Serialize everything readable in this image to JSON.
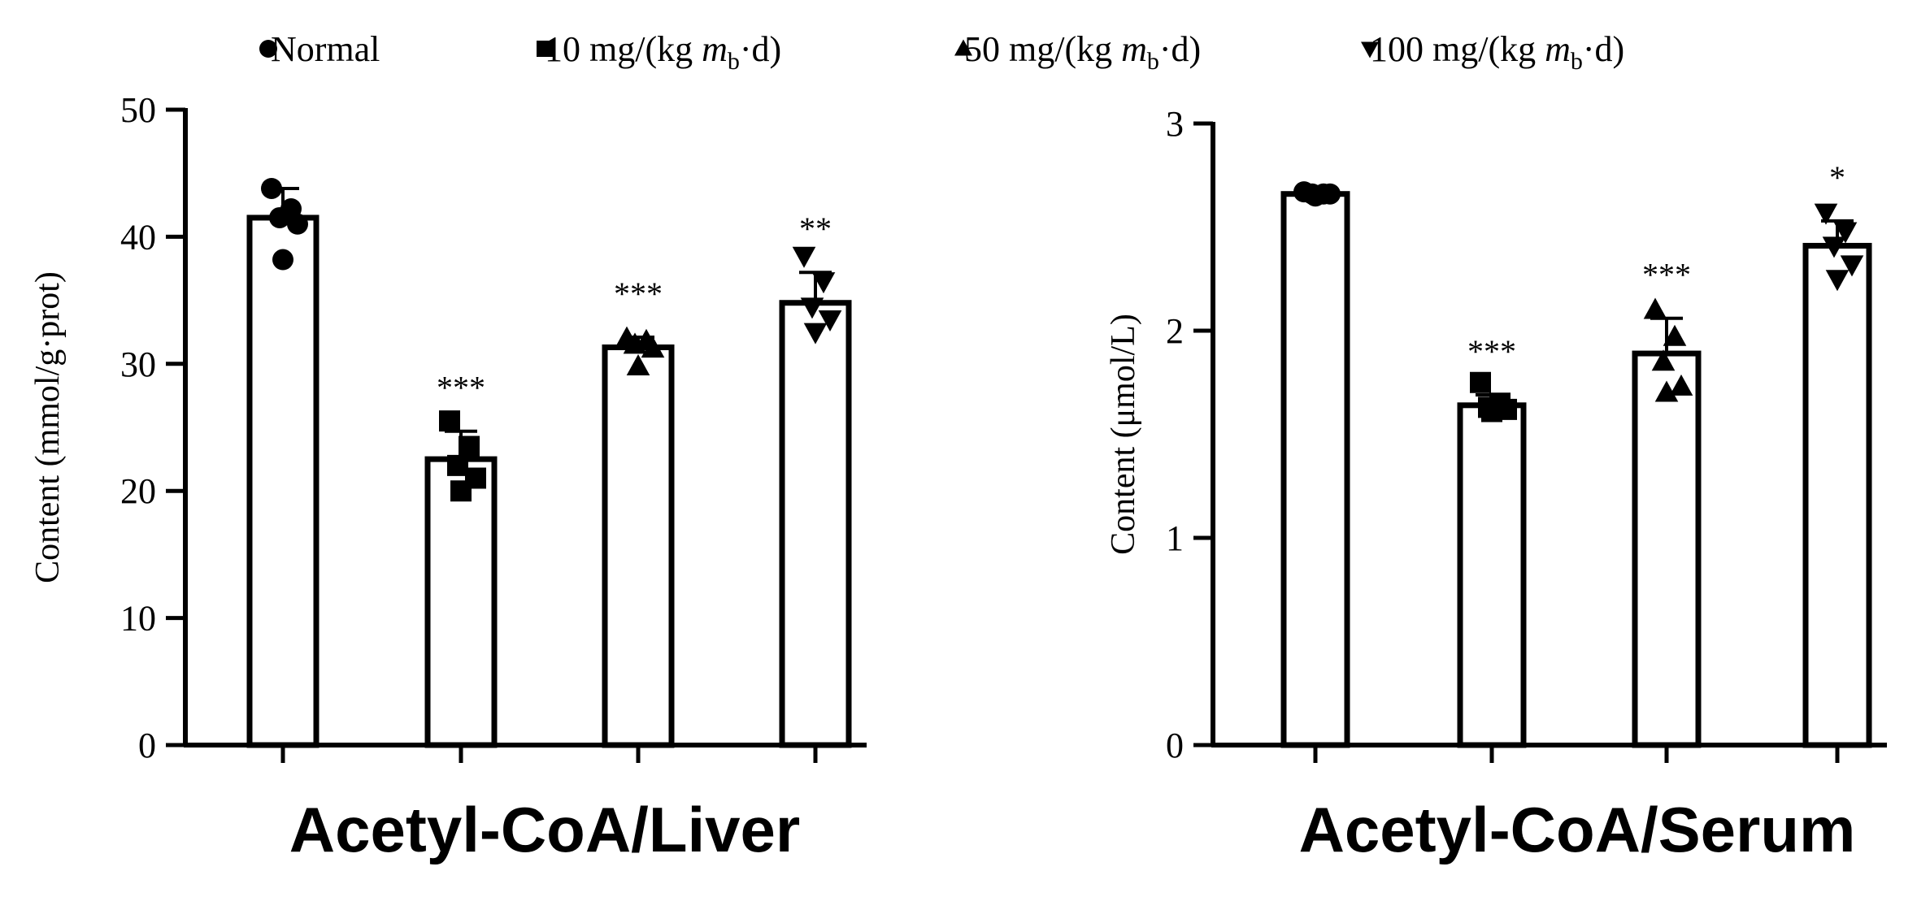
{
  "legend": [
    {
      "marker": "circle",
      "text": "Normal"
    },
    {
      "marker": "square",
      "pre": "10 mg/(kg ",
      "italic": "m",
      "sub": "b",
      "post": "·d)"
    },
    {
      "marker": "triangle-up",
      "pre": "50 mg/(kg ",
      "italic": "m",
      "sub": "b",
      "post": "·d)"
    },
    {
      "marker": "triangle-down",
      "pre": "100 mg/(kg ",
      "italic": "m",
      "sub": "b",
      "post": "·d)"
    }
  ],
  "chart_data": [
    {
      "type": "bar",
      "title": "Acetyl-CoA/Liver",
      "ylabel": "Content (mmol/g·prot)",
      "ylim": [
        0,
        50
      ],
      "yticks": [
        0,
        10,
        20,
        30,
        40,
        50
      ],
      "categories": [
        "Normal",
        "10 mg/(kg mb·d)",
        "50 mg/(kg mb·d)",
        "100 mg/(kg mb·d)"
      ],
      "values": [
        41.5,
        22.5,
        31.3,
        34.8
      ],
      "errors": [
        2.3,
        2.2,
        0.8,
        2.4
      ],
      "significance": [
        "",
        "***",
        "***",
        "**"
      ],
      "points": [
        [
          43.8,
          42.2,
          41.5,
          41.0,
          38.2
        ],
        [
          25.5,
          23.5,
          22.0,
          21.0,
          20.0
        ],
        [
          32.0,
          31.8,
          31.5,
          31.2,
          29.8
        ],
        [
          38.5,
          36.5,
          34.5,
          33.5,
          32.5
        ]
      ]
    },
    {
      "type": "bar",
      "title": "Acetyl-CoA/Serum",
      "ylabel": "Content (μmol/L)",
      "ylim": [
        0,
        3
      ],
      "yticks": [
        0,
        1,
        2,
        3
      ],
      "categories": [
        "Normal",
        "10 mg/(kg mb·d)",
        "50 mg/(kg mb·d)",
        "100 mg/(kg mb·d)"
      ],
      "values": [
        2.66,
        1.64,
        1.89,
        2.41
      ],
      "errors": [
        0.01,
        0.05,
        0.17,
        0.12
      ],
      "significance": [
        "",
        "***",
        "***",
        "*"
      ],
      "points": [
        [
          2.67,
          2.66,
          2.66,
          2.66,
          2.65
        ],
        [
          1.75,
          1.65,
          1.63,
          1.62,
          1.61
        ],
        [
          2.1,
          1.97,
          1.85,
          1.73,
          1.7
        ],
        [
          2.57,
          2.48,
          2.41,
          2.32,
          2.25
        ]
      ]
    }
  ]
}
